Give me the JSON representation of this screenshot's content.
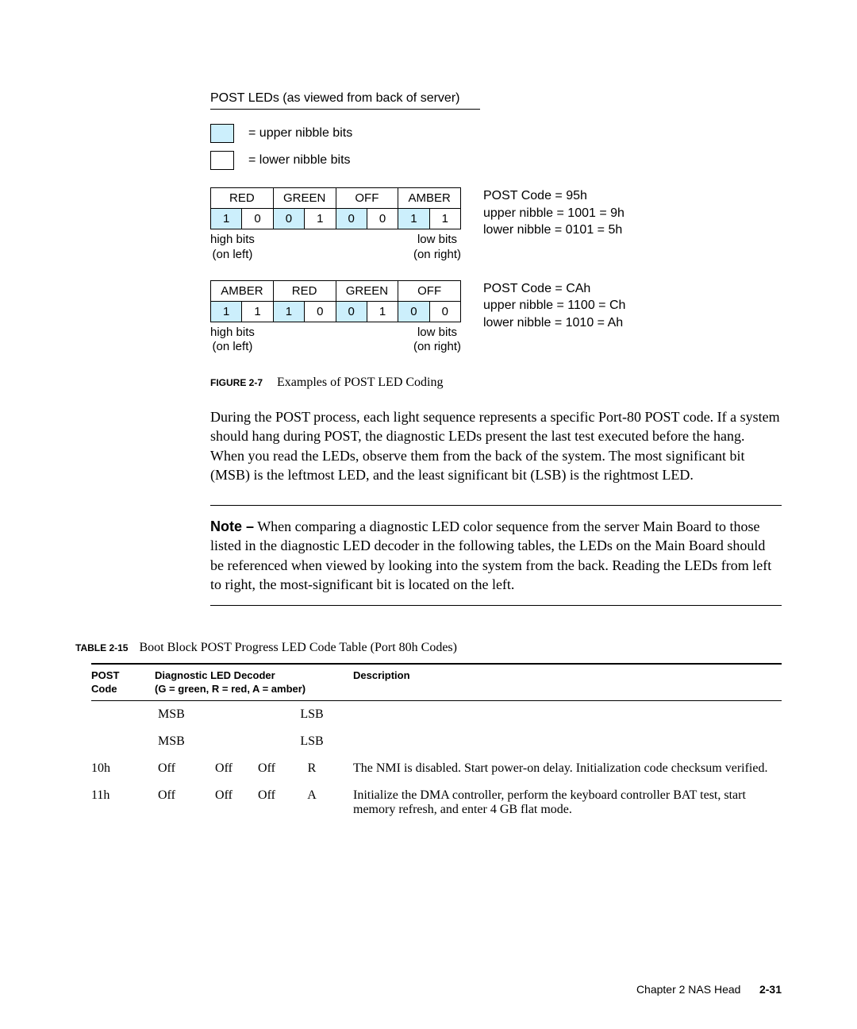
{
  "diagram": {
    "title": "POST LEDs (as viewed from back of server)",
    "legend_upper": "= upper nibble bits",
    "legend_lower": "= lower nibble bits",
    "upper_color": "#cceffc",
    "lower_color": "#ffffff",
    "hi_label_top": "high bits",
    "hi_label_bot": "(on left)",
    "lo_label_top": "low bits",
    "lo_label_bot": "(on right)"
  },
  "example1": {
    "headers": [
      "RED",
      "GREEN",
      "OFF",
      "AMBER"
    ],
    "bits": [
      "1",
      "0",
      "0",
      "1",
      "0",
      "0",
      "1",
      "1"
    ],
    "info1": "POST Code = 95h",
    "info2": "upper nibble = 1001 = 9h",
    "info3": "lower nibble = 0101 = 5h"
  },
  "example2": {
    "headers": [
      "AMBER",
      "RED",
      "GREEN",
      "OFF"
    ],
    "bits": [
      "1",
      "1",
      "1",
      "0",
      "0",
      "1",
      "0",
      "0"
    ],
    "info1": "POST Code = CAh",
    "info2": "upper nibble = 1100 = Ch",
    "info3": "lower nibble = 1010 = Ah"
  },
  "figure": {
    "label": "FIGURE 2-7",
    "text": "Examples of POST LED Coding"
  },
  "paragraph": "During the POST process, each light sequence represents a specific Port-80 POST code. If a system should hang during POST, the diagnostic LEDs present the last test executed before the hang. When you read the LEDs, observe them from the back of the system. The most significant bit (MSB) is the leftmost LED, and the least significant bit (LSB) is the rightmost LED.",
  "note": {
    "label": "Note –",
    "text": " When comparing a diagnostic LED color sequence from the server Main Board to those listed in the diagnostic LED decoder in the following tables, the LEDs on the Main Board should be referenced when viewed by looking into the system from the back. Reading the LEDs from left to right, the most-significant bit is located on the left."
  },
  "table": {
    "label": "TABLE 2-15",
    "title": "Boot Block POST Progress LED Code Table (Port 80h Codes)",
    "th_post": "POST Code",
    "th_led": "Diagnostic LED Decoder\n(G = green, R = red, A = amber)",
    "th_desc": "Description",
    "msb": "MSB",
    "lsb": "LSB",
    "rows": [
      {
        "code": "10h",
        "c1": "Off",
        "c2": "Off",
        "c3": "Off",
        "c4": "R",
        "desc": "The NMI is disabled. Start power-on delay. Initialization code checksum verified."
      },
      {
        "code": "11h",
        "c1": "Off",
        "c2": "Off",
        "c3": "Off",
        "c4": "A",
        "desc": "Initialize the DMA controller, perform the keyboard controller BAT test, start memory refresh, and enter 4 GB flat mode."
      }
    ]
  },
  "footer": {
    "chapter": "Chapter 2    NAS Head",
    "page": "2-31"
  }
}
